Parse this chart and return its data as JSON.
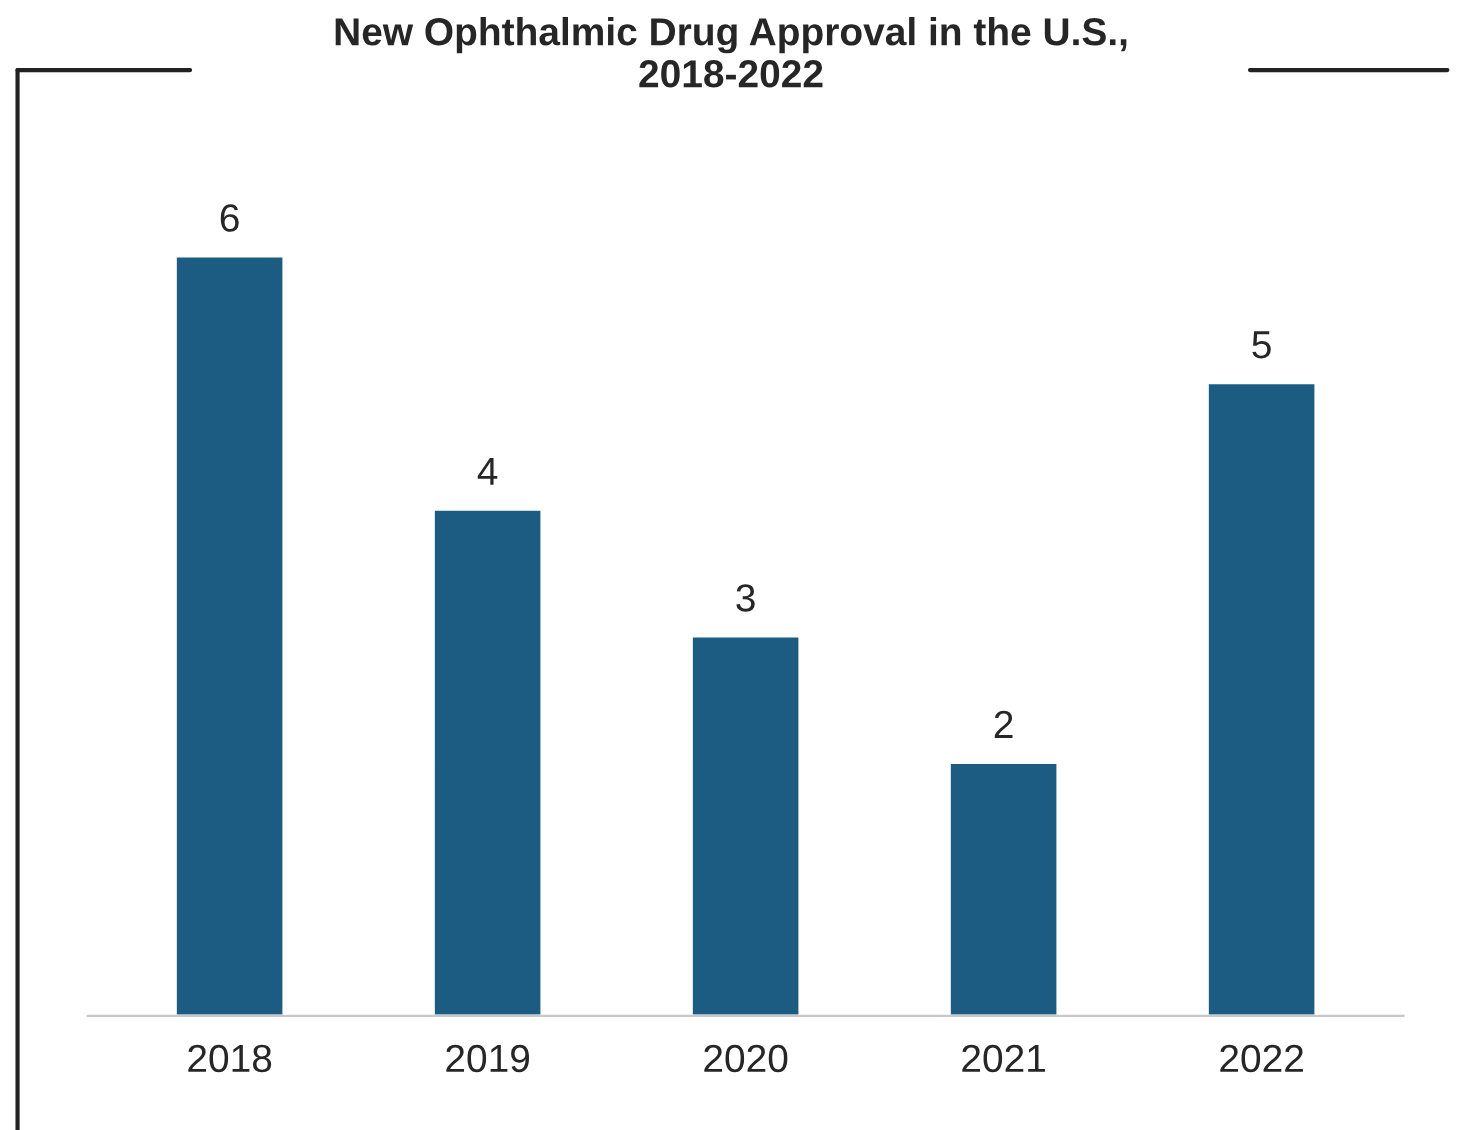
{
  "chart_data": {
    "type": "bar",
    "title": "New Ophthalmic Drug Approval in the U.S.,\n2018-2022",
    "categories": [
      "2018",
      "2019",
      "2020",
      "2021",
      "2022"
    ],
    "values": [
      6,
      4,
      3,
      2,
      5
    ],
    "color": "#1d5c82",
    "data_labels": true,
    "grid": false,
    "legend": false
  }
}
